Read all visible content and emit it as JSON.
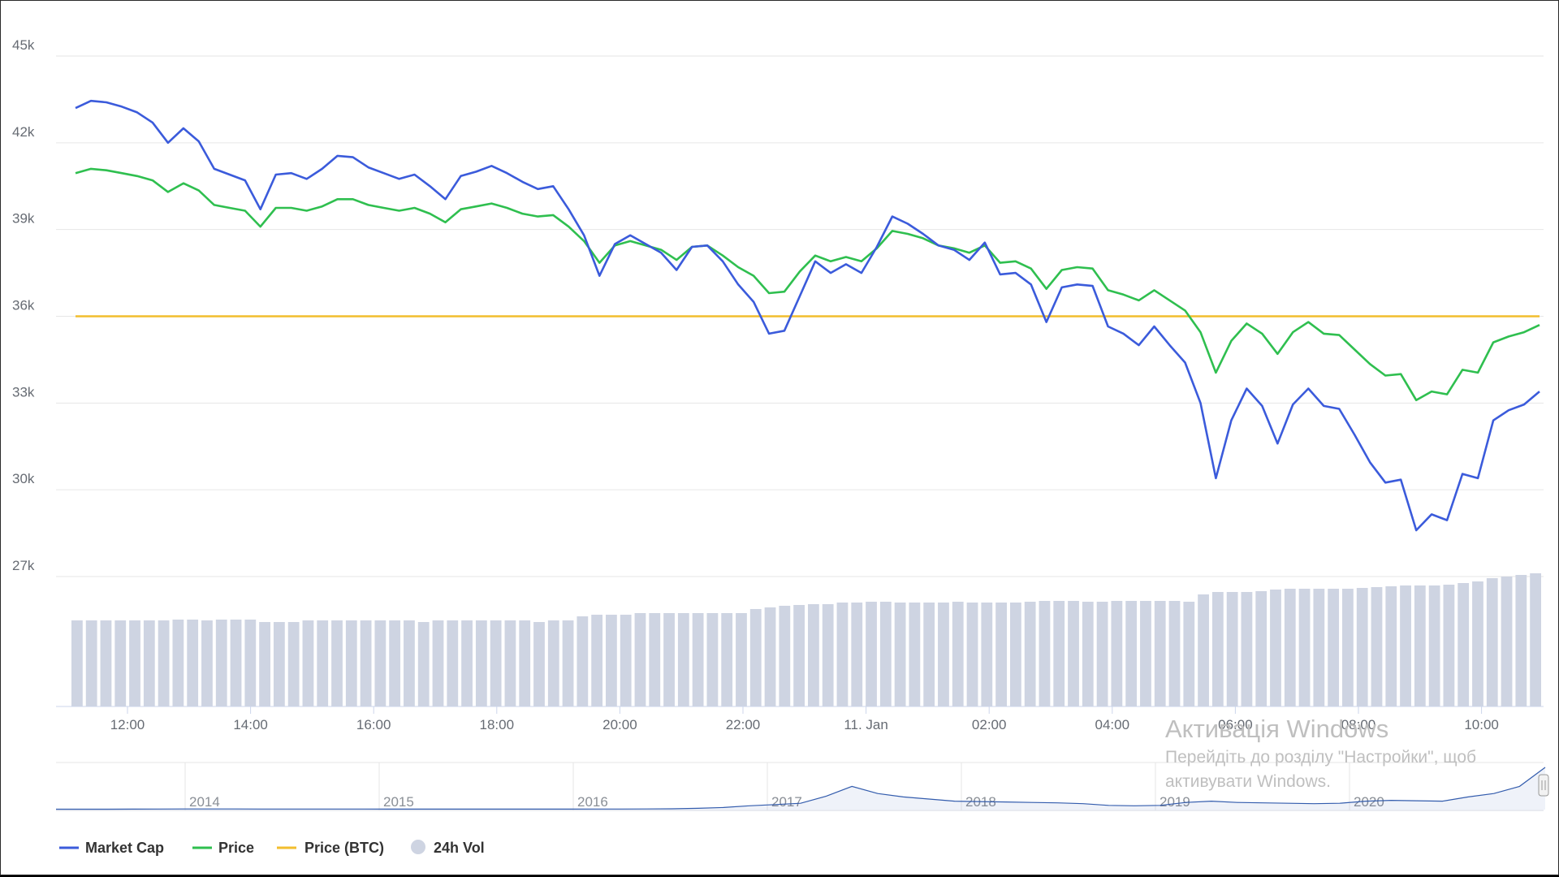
{
  "chart_data": {
    "type": "line",
    "x_tick_labels": [
      "12:00",
      "14:00",
      "16:00",
      "18:00",
      "20:00",
      "22:00",
      "11. Jan",
      "02:00",
      "04:00",
      "06:00",
      "08:00",
      "10:00"
    ],
    "y_tick_labels": [
      "27k",
      "30k",
      "33k",
      "36k",
      "39k",
      "42k",
      "45k"
    ],
    "y_ticks": [
      27000,
      30000,
      33000,
      36000,
      39000,
      42000,
      45000
    ],
    "ylim": [
      26500,
      46000
    ],
    "grid": true,
    "legend_position": "bottom-left",
    "series": [
      {
        "name": "Market Cap",
        "color": "#3b5bdb",
        "values": [
          43200,
          43450,
          43400,
          43250,
          43050,
          42700,
          42000,
          42500,
          42050,
          41100,
          40900,
          40700,
          39700,
          40900,
          40950,
          40750,
          41100,
          41550,
          41500,
          41150,
          40950,
          40750,
          40900,
          40500,
          40050,
          40850,
          41000,
          41200,
          40950,
          40650,
          40400,
          40500,
          39700,
          38800,
          37400,
          38500,
          38800,
          38500,
          38200,
          37600,
          38400,
          38450,
          37900,
          37100,
          36500,
          35400,
          35500,
          36700,
          37900,
          37500,
          37800,
          37500,
          38400,
          39450,
          39200,
          38850,
          38450,
          38300,
          37950,
          38550,
          37450,
          37500,
          37100,
          35800,
          37000,
          37100,
          37050,
          35650,
          35400,
          35000,
          35650,
          35000,
          34400,
          33000,
          30400,
          32400,
          33500,
          32900,
          31600,
          32950,
          33500,
          32900,
          32800,
          31900,
          30950,
          30250,
          30350,
          28600,
          29150,
          28950,
          30550,
          30400,
          32400,
          32750,
          32950,
          33400
        ]
      },
      {
        "name": "Price",
        "color": "#2fbf4f",
        "values": [
          40950,
          41100,
          41050,
          40950,
          40850,
          40700,
          40300,
          40600,
          40350,
          39850,
          39750,
          39650,
          39100,
          39750,
          39750,
          39650,
          39800,
          40050,
          40050,
          39850,
          39750,
          39650,
          39750,
          39550,
          39250,
          39700,
          39800,
          39900,
          39750,
          39550,
          39450,
          39500,
          39100,
          38600,
          37850,
          38450,
          38600,
          38450,
          38300,
          37950,
          38400,
          38450,
          38100,
          37700,
          37400,
          36800,
          36850,
          37550,
          38100,
          37900,
          38050,
          37900,
          38350,
          38950,
          38850,
          38700,
          38450,
          38350,
          38200,
          38450,
          37850,
          37900,
          37650,
          36950,
          37600,
          37700,
          37650,
          36900,
          36750,
          36550,
          36900,
          36550,
          36200,
          35450,
          34050,
          35150,
          35750,
          35400,
          34700,
          35450,
          35800,
          35400,
          35350,
          34850,
          34350,
          33950,
          34000,
          33100,
          33400,
          33300,
          34150,
          34050,
          35100,
          35300,
          35450,
          35700
        ]
      },
      {
        "name": "Price (BTC)",
        "color": "#f2be2e",
        "values": [
          36000,
          36000
        ]
      }
    ],
    "volume": {
      "name": "24h Vol",
      "color": "#ced4e2",
      "values": [
        0.53,
        0.53,
        0.53,
        0.53,
        0.53,
        0.53,
        0.53,
        0.535,
        0.535,
        0.53,
        0.535,
        0.535,
        0.535,
        0.52,
        0.52,
        0.52,
        0.53,
        0.53,
        0.53,
        0.53,
        0.53,
        0.53,
        0.53,
        0.53,
        0.52,
        0.53,
        0.53,
        0.53,
        0.53,
        0.53,
        0.53,
        0.53,
        0.52,
        0.53,
        0.53,
        0.555,
        0.565,
        0.565,
        0.565,
        0.575,
        0.575,
        0.575,
        0.575,
        0.575,
        0.575,
        0.575,
        0.575,
        0.6,
        0.61,
        0.62,
        0.625,
        0.63,
        0.63,
        0.64,
        0.64,
        0.645,
        0.645,
        0.64,
        0.64,
        0.64,
        0.64,
        0.645,
        0.64,
        0.64,
        0.64,
        0.64,
        0.645,
        0.65,
        0.65,
        0.65,
        0.645,
        0.645,
        0.65,
        0.65,
        0.65,
        0.65,
        0.65,
        0.645,
        0.69,
        0.705,
        0.705,
        0.705,
        0.71,
        0.72,
        0.725,
        0.725,
        0.725,
        0.725,
        0.725,
        0.73,
        0.735,
        0.74,
        0.745,
        0.745,
        0.745,
        0.75,
        0.76,
        0.77,
        0.79,
        0.8,
        0.81,
        0.82
      ]
    },
    "navigator": {
      "year_labels": [
        "2014",
        "2015",
        "2016",
        "2017",
        "2018",
        "2019",
        "2020"
      ],
      "values": [
        0.01,
        0.01,
        0.01,
        0.012,
        0.014,
        0.016,
        0.016,
        0.015,
        0.014,
        0.014,
        0.013,
        0.013,
        0.013,
        0.012,
        0.012,
        0.012,
        0.011,
        0.011,
        0.011,
        0.012,
        0.012,
        0.013,
        0.014,
        0.016,
        0.02,
        0.03,
        0.05,
        0.09,
        0.12,
        0.15,
        0.32,
        0.55,
        0.38,
        0.3,
        0.25,
        0.2,
        0.19,
        0.18,
        0.17,
        0.16,
        0.14,
        0.1,
        0.09,
        0.1,
        0.17,
        0.2,
        0.17,
        0.16,
        0.15,
        0.14,
        0.15,
        0.2,
        0.22,
        0.21,
        0.2,
        0.3,
        0.38,
        0.55,
        1.0
      ]
    }
  },
  "legend": [
    {
      "label": "Market Cap",
      "color": "#3b5bdb",
      "symbol": "line"
    },
    {
      "label": "Price",
      "color": "#2fbf4f",
      "symbol": "line"
    },
    {
      "label": "Price (BTC)",
      "color": "#f2be2e",
      "symbol": "line"
    },
    {
      "label": "24h Vol",
      "color": "#ced4e2",
      "symbol": "circle"
    }
  ],
  "watermark": {
    "title": "Активація Windows",
    "line1": "Перейдіть до розділу \"Настройки\", щоб",
    "line2": "активувати Windows."
  }
}
